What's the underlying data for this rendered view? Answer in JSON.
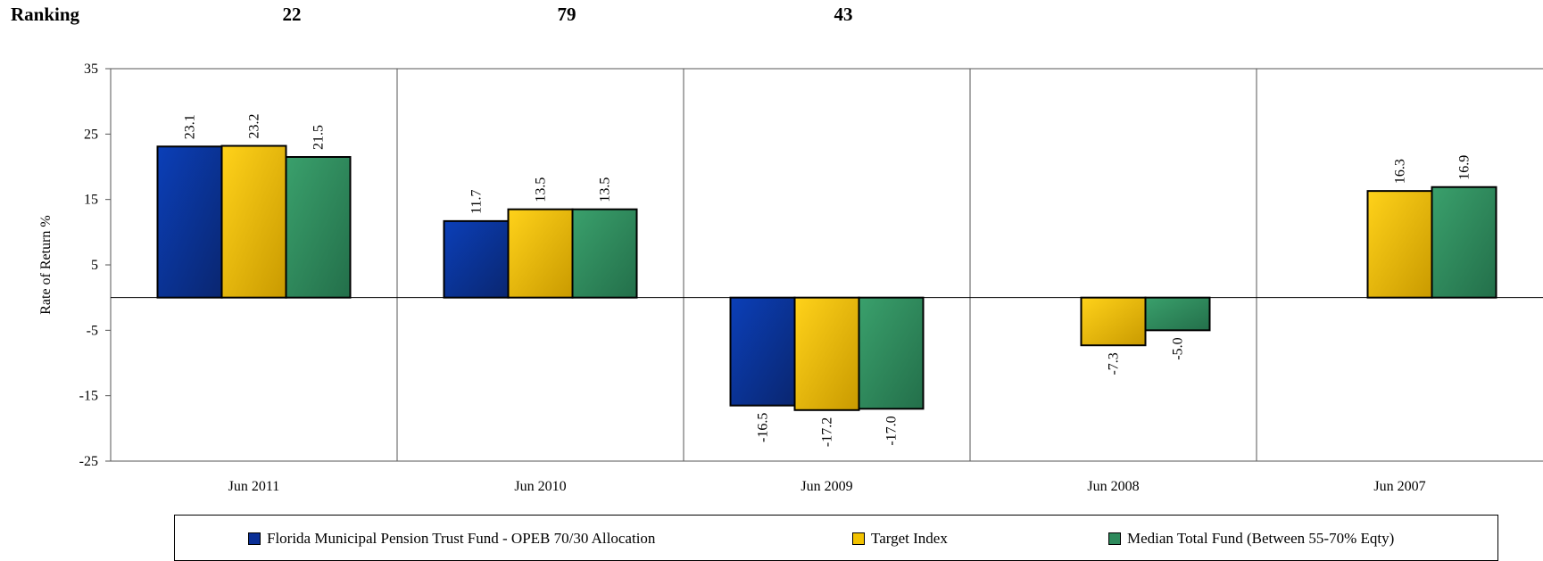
{
  "ranking": {
    "label": "Ranking",
    "values": [
      "22",
      "79",
      "43"
    ]
  },
  "chart_data": {
    "type": "bar",
    "categories": [
      "Jun 2011",
      "Jun 2010",
      "Jun 2009",
      "Jun 2008",
      "Jun 2007"
    ],
    "series": [
      {
        "name": "Florida Municipal Pension Trust Fund - OPEB 70/30 Allocation",
        "color": "#0a2f96",
        "values": [
          23.1,
          11.7,
          -16.5,
          null,
          null
        ]
      },
      {
        "name": "Target Index",
        "color": "#f2c200",
        "values": [
          23.2,
          13.5,
          -17.2,
          -7.3,
          16.3
        ]
      },
      {
        "name": "Median Total Fund (Between 55-70% Eqty)",
        "color": "#2e8a5c",
        "values": [
          21.5,
          13.5,
          -17.0,
          -5.0,
          16.9
        ]
      }
    ],
    "data_labels": [
      [
        "23.1",
        "11.7",
        "-16.5",
        "",
        ""
      ],
      [
        "23.2",
        "13.5",
        "-17.2",
        "-7.3",
        "16.3"
      ],
      [
        "21.5",
        "13.5",
        "-17.0",
        "-5.0",
        "16.9"
      ]
    ],
    "ylabel": "Rate of Return %",
    "ylim": [
      -25,
      35
    ],
    "yticks": [
      "35",
      "25",
      "15",
      "5",
      "-5",
      "-15",
      "-25"
    ],
    "legend_position": "bottom",
    "grid": false
  }
}
